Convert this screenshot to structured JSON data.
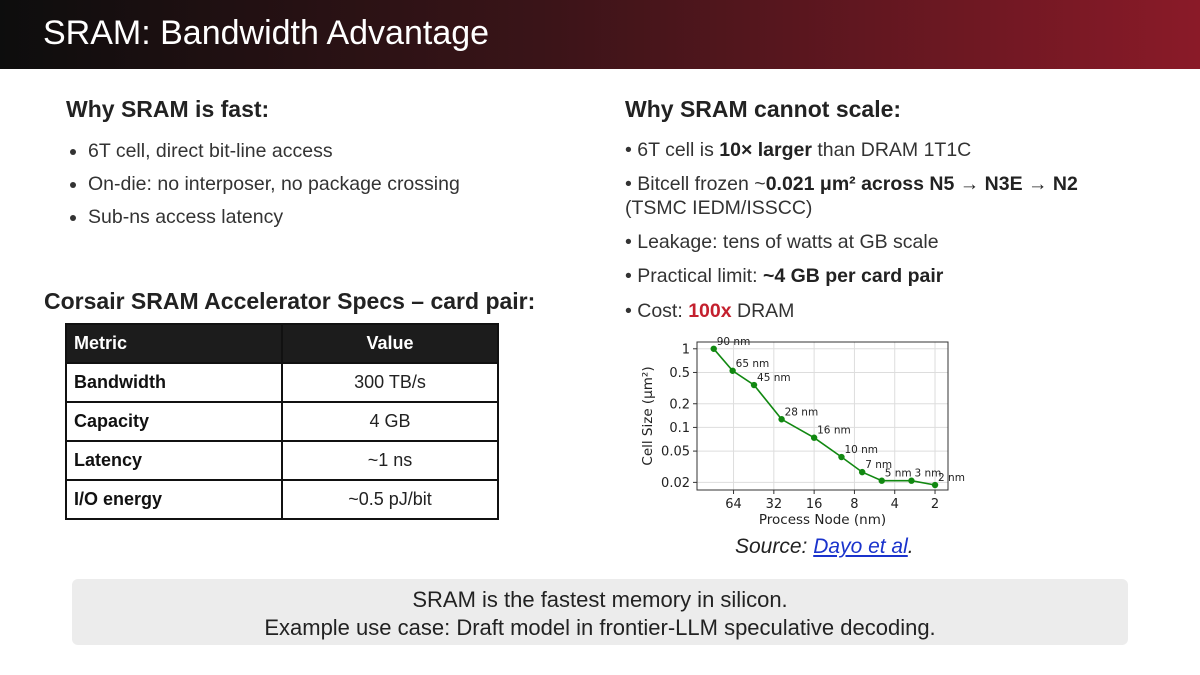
{
  "slide": {
    "title": "SRAM: Bandwidth Advantage"
  },
  "left": {
    "heading": "Why SRAM is fast:",
    "bullets": [
      "6T cell, direct bit-line access",
      "On-die: no interposer, no package crossing",
      "Sub-ns access latency"
    ],
    "specs_heading": "Corsair SRAM Accelerator Specs – card pair:",
    "table": {
      "headers": [
        "Metric",
        "Value"
      ],
      "rows": [
        [
          "Bandwidth",
          "300 TB/s"
        ],
        [
          "Capacity",
          "4 GB"
        ],
        [
          "Latency",
          "~1 ns"
        ],
        [
          "I/O energy",
          "~0.5 pJ/bit"
        ]
      ]
    }
  },
  "right": {
    "heading": "Why SRAM cannot scale:",
    "b1": {
      "pre": "• 6T cell is ",
      "bold": "10× larger",
      "post": " than DRAM 1T1C"
    },
    "b2": {
      "pre": "• Bitcell frozen ~",
      "bold": "0.021 μm² across N5 → N3E → N2",
      "post": "(TSMC IEDM/ISSCC)"
    },
    "b3": {
      "text": "• Leakage: tens of watts at GB scale"
    },
    "b4": {
      "pre": "• Practical limit: ",
      "bold": "~4 GB per card pair"
    },
    "b5": {
      "pre": "• Cost: ",
      "red": "100x",
      "post": " DRAM"
    }
  },
  "chart_data": {
    "type": "line",
    "x": [
      90,
      65,
      45,
      28,
      16,
      10,
      7,
      5,
      3,
      2
    ],
    "point_labels": [
      "90 nm",
      "65 nm",
      "45 nm",
      "28 nm",
      "16 nm",
      "10 nm",
      "7 nm",
      "5 nm",
      "3 nm",
      "2 nm"
    ],
    "y": [
      1.0,
      0.525,
      0.346,
      0.127,
      0.074,
      0.042,
      0.027,
      0.021,
      0.021,
      0.0185
    ],
    "xlabel": "Process Node (nm)",
    "ylabel": "Cell Size (μm²)",
    "x_scale": "log",
    "x_reversed": true,
    "y_scale": "log",
    "xticks": [
      64,
      32,
      16,
      8,
      4,
      2
    ],
    "yticks": [
      1,
      0.5,
      0.2,
      0.1,
      0.05,
      0.02
    ],
    "xlim": [
      120,
      1.6
    ],
    "ylim": [
      0.016,
      1.22
    ],
    "grid": true,
    "color": "#118811"
  },
  "source": {
    "prefix": "Source: ",
    "link": "Dayo et al",
    "suffix": "."
  },
  "footer": {
    "line1": "SRAM is the fastest memory in silicon.",
    "line2": "Example use case: Draft model in frontier-LLM speculative decoding."
  }
}
